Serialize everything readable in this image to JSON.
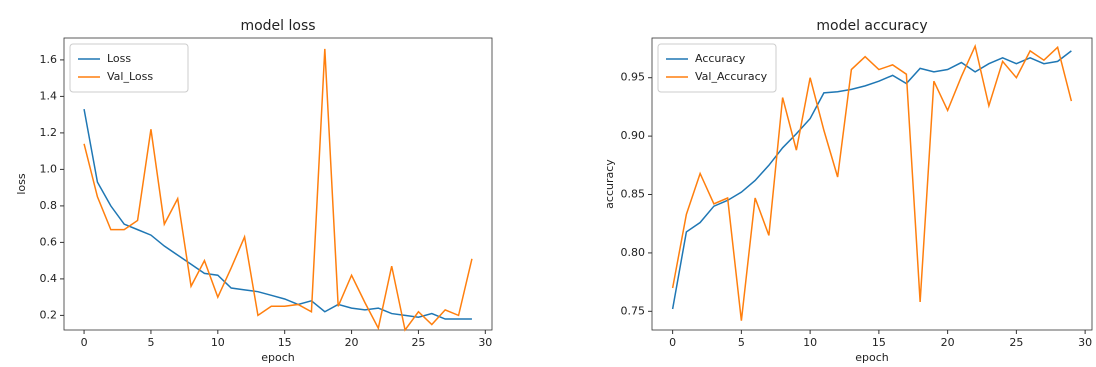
{
  "chart_data": [
    {
      "type": "line",
      "title": "model loss",
      "xlabel": "epoch",
      "ylabel": "loss",
      "x": [
        0,
        1,
        2,
        3,
        4,
        5,
        6,
        7,
        8,
        9,
        10,
        11,
        12,
        13,
        14,
        15,
        16,
        17,
        18,
        19,
        20,
        21,
        22,
        23,
        24,
        25,
        26,
        27,
        28,
        29
      ],
      "series": [
        {
          "name": "Loss",
          "color": "#1f77b4",
          "values": [
            1.33,
            0.93,
            0.8,
            0.7,
            0.67,
            0.64,
            0.58,
            0.53,
            0.48,
            0.43,
            0.42,
            0.35,
            0.34,
            0.33,
            0.31,
            0.29,
            0.26,
            0.28,
            0.22,
            0.26,
            0.24,
            0.23,
            0.24,
            0.21,
            0.2,
            0.19,
            0.21,
            0.18,
            0.18,
            0.18
          ]
        },
        {
          "name": "Val_Loss",
          "color": "#ff7f0e",
          "values": [
            1.14,
            0.85,
            0.67,
            0.67,
            0.72,
            1.22,
            0.7,
            0.84,
            0.36,
            0.5,
            0.3,
            0.46,
            0.63,
            0.2,
            0.25,
            0.25,
            0.26,
            0.22,
            1.66,
            0.25,
            0.42,
            0.27,
            0.13,
            0.47,
            0.12,
            0.22,
            0.15,
            0.23,
            0.2,
            0.51
          ]
        }
      ],
      "xlim": [
        -1.5,
        30.5
      ],
      "ylim": [
        0.12,
        1.72
      ],
      "xticks": [
        0,
        5,
        10,
        15,
        20,
        25,
        30
      ],
      "yticks": [
        0.2,
        0.4,
        0.6,
        0.8,
        {
          "value": 1,
          "label": "1.0"
        },
        1.2,
        1.4,
        1.6
      ],
      "legend": "upper left"
    },
    {
      "type": "line",
      "title": "model accuracy",
      "xlabel": "epoch",
      "ylabel": "accuracy",
      "x": [
        0,
        1,
        2,
        3,
        4,
        5,
        6,
        7,
        8,
        9,
        10,
        11,
        12,
        13,
        14,
        15,
        16,
        17,
        18,
        19,
        20,
        21,
        22,
        23,
        24,
        25,
        26,
        27,
        28,
        29
      ],
      "series": [
        {
          "name": "Accuracy",
          "color": "#1f77b4",
          "values": [
            0.752,
            0.818,
            0.826,
            0.84,
            0.845,
            0.852,
            0.862,
            0.875,
            0.89,
            0.902,
            0.915,
            0.937,
            0.938,
            0.94,
            0.943,
            0.947,
            0.952,
            0.945,
            0.958,
            0.955,
            0.957,
            0.963,
            0.955,
            0.962,
            0.967,
            0.962,
            0.967,
            0.962,
            0.964,
            0.973
          ]
        },
        {
          "name": "Val_Accuracy",
          "color": "#ff7f0e",
          "values": [
            0.77,
            0.833,
            0.868,
            0.842,
            0.847,
            0.742,
            0.847,
            0.815,
            0.933,
            0.888,
            0.95,
            0.905,
            0.865,
            0.957,
            0.968,
            0.957,
            0.961,
            0.953,
            0.758,
            0.947,
            0.922,
            0.951,
            0.977,
            0.926,
            0.964,
            0.95,
            0.973,
            0.965,
            0.976,
            0.93
          ]
        }
      ],
      "xlim": [
        -1.5,
        30.5
      ],
      "ylim": [
        0.734,
        0.984
      ],
      "xticks": [
        0,
        5,
        10,
        15,
        20,
        25,
        30
      ],
      "yticks": [
        0.75,
        {
          "value": 0.8,
          "label": "0.80"
        },
        0.85,
        {
          "value": 0.9,
          "label": "0.90"
        },
        0.95
      ],
      "legend": "upper left"
    }
  ]
}
